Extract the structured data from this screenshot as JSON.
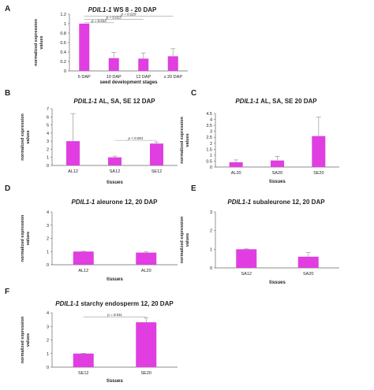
{
  "colors": {
    "bar": "#e03ee0",
    "error": "#999999",
    "axis": "#666666"
  },
  "chart_data": [
    {
      "type": "bar",
      "panel": "A",
      "title_gene": "PDIL1-1",
      "title_rest": " WS 8 - 20 DAP",
      "categories": [
        "6 DAP",
        "10 DAP",
        "12 DAP",
        "≥ 20 DAP"
      ],
      "values": [
        1.0,
        0.27,
        0.26,
        0.31
      ],
      "errors": [
        0.0,
        0.12,
        0.12,
        0.16
      ],
      "yticks": [
        "0",
        "0.2",
        "0.4",
        "0.6",
        "0.8",
        "1",
        "1.2"
      ],
      "ylim": [
        0,
        1.2
      ],
      "xlabel": "seed development stages",
      "ylabel": [
        "normalized expression",
        "values"
      ],
      "significance": [
        {
          "from": 0,
          "to": 3,
          "level": 1.16,
          "label": "p = 0.029"
        },
        {
          "from": 0,
          "to": 2,
          "level": 1.09,
          "label": "p = 0.013"
        },
        {
          "from": 0,
          "to": 1,
          "level": 1.02,
          "label": "p = 0.012"
        }
      ]
    },
    {
      "type": "bar",
      "panel": "B",
      "title_gene": "PDIL1-1",
      "title_rest": " AL, SA, SE 12 DAP",
      "categories": [
        "AL12",
        "SA12",
        "SE12"
      ],
      "values": [
        3.0,
        1.0,
        2.7
      ],
      "errors": [
        3.4,
        0.15,
        0.2
      ],
      "yticks": [
        "0",
        "1",
        "2",
        "3",
        "4",
        "5",
        "6",
        "7"
      ],
      "ylim": [
        0,
        7
      ],
      "xlabel": "tissues",
      "ylabel": [
        "normalized expression",
        "values"
      ],
      "significance": [
        {
          "from": 1,
          "to": 2,
          "level": 3.1,
          "label": "p < 0.001"
        }
      ]
    },
    {
      "type": "bar",
      "panel": "C",
      "title_gene": "PDIL1-1",
      "title_rest": " AL, SA, SE 20 DAP",
      "categories": [
        "AL20",
        "SA20",
        "SE20"
      ],
      "values": [
        0.4,
        0.55,
        2.6
      ],
      "errors": [
        0.2,
        0.35,
        1.6
      ],
      "yticks": [
        "0",
        "0.5",
        "1",
        "1.5",
        "2",
        "2.5",
        "3",
        "3.5",
        "4",
        "4.5"
      ],
      "ylim": [
        0,
        4.5
      ],
      "xlabel": "tissues",
      "ylabel": [
        "normalized expression",
        "values"
      ],
      "significance": []
    },
    {
      "type": "bar",
      "panel": "D",
      "title_gene": "PDIL1-1",
      "title_rest": " aleurone 12, 20 DAP",
      "categories": [
        "AL12",
        "AL20"
      ],
      "values": [
        1.0,
        0.92
      ],
      "errors": [
        0.02,
        0.08
      ],
      "yticks": [
        "0",
        "1",
        "2",
        "3",
        "4"
      ],
      "ylim": [
        0,
        4
      ],
      "xlabel": "tissues",
      "ylabel": [
        "normalized expression",
        "values"
      ],
      "significance": []
    },
    {
      "type": "bar",
      "panel": "E",
      "title_gene": "PDIL1-1",
      "title_rest": " subaleurone 12, 20 DAP",
      "categories": [
        "SA12",
        "SA20"
      ],
      "values": [
        1.0,
        0.6
      ],
      "errors": [
        0.02,
        0.22
      ],
      "yticks": [
        "0",
        "1",
        "2",
        "3"
      ],
      "ylim": [
        0,
        3
      ],
      "xlabel": "tissues",
      "ylabel": [
        "normalized expression",
        "values"
      ],
      "significance": []
    },
    {
      "type": "bar",
      "panel": "F",
      "title_gene": "PDIL1-1",
      "title_rest": " starchy endosperm 12, 20 DAP",
      "categories": [
        "SE12",
        "SE20"
      ],
      "values": [
        1.0,
        3.3
      ],
      "errors": [
        0.02,
        0.32
      ],
      "yticks": [
        "0",
        "1",
        "2",
        "3",
        "4"
      ],
      "ylim": [
        0,
        4
      ],
      "xlabel": "tissues",
      "ylabel": [
        "normalized expression",
        "values"
      ],
      "significance": [
        {
          "from": 0,
          "to": 1,
          "level": 3.7,
          "label": "p = 0.011"
        }
      ]
    }
  ]
}
